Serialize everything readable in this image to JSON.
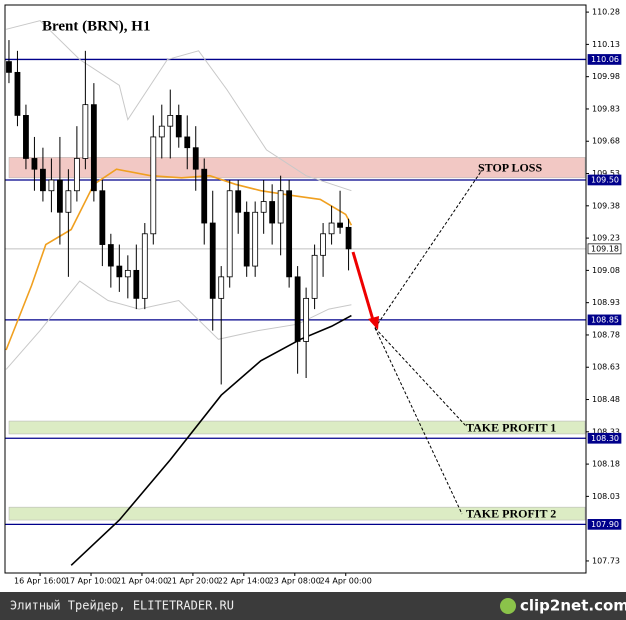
{
  "chart_data": {
    "type": "candlestick",
    "title": "Brent (BRN), H1",
    "x": [
      5,
      8,
      11,
      14,
      17,
      20,
      23,
      26,
      29,
      32,
      35,
      38,
      41,
      44,
      47,
      50,
      53,
      56,
      59,
      62,
      65,
      68,
      71,
      74,
      77,
      80,
      83,
      86,
      89,
      92,
      95,
      98,
      101,
      104,
      107,
      110,
      113,
      116,
      119,
      122,
      125
    ],
    "open": [
      110.05,
      110.0,
      109.8,
      109.6,
      109.55,
      109.45,
      109.5,
      109.35,
      109.45,
      109.6,
      109.85,
      109.45,
      109.2,
      109.1,
      109.05,
      109.08,
      108.95,
      109.25,
      109.7,
      109.75,
      109.8,
      109.7,
      109.65,
      109.55,
      109.3,
      108.95,
      109.05,
      109.45,
      109.35,
      109.1,
      109.35,
      109.4,
      109.3,
      109.45,
      109.05,
      108.75,
      108.95,
      109.15,
      109.25,
      109.3,
      109.28
    ],
    "high": [
      110.15,
      110.1,
      109.85,
      109.7,
      109.65,
      109.6,
      109.7,
      109.55,
      109.75,
      110.1,
      109.95,
      109.5,
      109.25,
      109.2,
      109.15,
      109.2,
      109.3,
      109.8,
      109.85,
      109.92,
      109.85,
      109.8,
      109.75,
      109.6,
      109.45,
      109.1,
      109.5,
      109.5,
      109.4,
      109.4,
      109.5,
      109.48,
      109.52,
      109.5,
      109.1,
      109.0,
      109.2,
      109.3,
      109.38,
      109.45,
      109.32
    ],
    "low": [
      109.95,
      109.75,
      109.55,
      109.45,
      109.4,
      109.35,
      109.2,
      109.05,
      109.4,
      109.55,
      109.4,
      109.1,
      109.0,
      108.98,
      108.95,
      108.9,
      108.9,
      109.2,
      109.6,
      109.6,
      109.65,
      109.55,
      109.45,
      109.2,
      108.8,
      108.55,
      109.0,
      109.25,
      109.05,
      109.05,
      109.25,
      109.2,
      109.15,
      109.0,
      108.6,
      108.58,
      108.9,
      109.05,
      109.2,
      109.25,
      109.08
    ],
    "close": [
      110.0,
      109.8,
      109.6,
      109.55,
      109.45,
      109.5,
      109.35,
      109.45,
      109.6,
      109.85,
      109.45,
      109.2,
      109.1,
      109.05,
      109.08,
      108.95,
      109.25,
      109.7,
      109.75,
      109.8,
      109.7,
      109.65,
      109.55,
      109.3,
      108.95,
      109.05,
      109.45,
      109.35,
      109.1,
      109.35,
      109.4,
      109.3,
      109.45,
      109.05,
      108.75,
      108.95,
      109.15,
      109.25,
      109.3,
      109.28,
      109.18
    ],
    "lines": [
      {
        "color": "#c8c8c8",
        "x": [
          4,
          16,
          30,
          44,
          47,
          61,
          72,
          82,
          96,
          110,
          126
        ],
        "values": [
          110.2,
          110.24,
          110.06,
          109.94,
          109.78,
          110.06,
          110.1,
          109.92,
          109.64,
          109.52,
          109.45
        ]
      },
      {
        "color": "#c8c8c8",
        "x": [
          4,
          16,
          30,
          40,
          51,
          65,
          79,
          93,
          107,
          118,
          126
        ],
        "values": [
          108.62,
          108.8,
          109.03,
          108.94,
          108.9,
          108.94,
          108.76,
          108.8,
          108.83,
          108.9,
          108.92
        ]
      },
      {
        "color": "#f0a020",
        "x": [
          4,
          13,
          18,
          27,
          35,
          43,
          55,
          66,
          76,
          85,
          94,
          104,
          115,
          124,
          126
        ],
        "values": [
          108.71,
          109.01,
          109.2,
          109.27,
          109.48,
          109.55,
          109.52,
          109.51,
          109.52,
          109.48,
          109.45,
          109.43,
          109.41,
          109.34,
          109.29
        ]
      },
      {
        "color": "#000000",
        "x": [
          27,
          44,
          62,
          80,
          94,
          108,
          119,
          126
        ],
        "values": [
          107.71,
          107.92,
          108.2,
          108.5,
          108.66,
          108.76,
          108.82,
          108.87
        ]
      }
    ],
    "levels": [
      {
        "value": 110.06,
        "color": "#00008b"
      },
      {
        "value": 109.5,
        "label": "109.50",
        "color": "#00008b"
      },
      {
        "value": 109.18,
        "color": "#c0c0c0"
      },
      {
        "value": 108.85,
        "color": "#00008b"
      },
      {
        "value": 108.3,
        "label": "108.30",
        "color": "#00008b"
      },
      {
        "value": 107.9,
        "label": "107.90",
        "color": "#00008b"
      }
    ],
    "zones": [
      {
        "name": "STOP LOSS",
        "range": [
          109.51,
          109.605
        ],
        "color": "#f2c8c4"
      },
      {
        "name": "TAKE PROFIT 1",
        "range": [
          108.32,
          108.38
        ],
        "color": "#dcecc4"
      },
      {
        "name": "TAKE PROFIT 2",
        "range": [
          107.92,
          107.98
        ],
        "color": "#dcecc4"
      }
    ],
    "ylim": [
      107.674,
      110.313
    ],
    "yticks": [
      110.28,
      110.13,
      109.98,
      109.83,
      109.68,
      109.53,
      109.38,
      109.23,
      109.08,
      108.93,
      108.78,
      108.63,
      108.48,
      108.33,
      108.18,
      108.03,
      107.73
    ],
    "xlim": [
      3.6,
      208.9
    ],
    "xticks": [
      {
        "value": 16,
        "label": "16 Apr 16:00"
      },
      {
        "value": 34,
        "label": "17 Apr 10:00"
      },
      {
        "value": 52,
        "label": "21 Apr 04:00"
      },
      {
        "value": 70,
        "label": "21 Apr 20:00"
      },
      {
        "value": 88,
        "label": "22 Apr 14:00"
      },
      {
        "value": 106,
        "label": "23 Apr 08:00"
      },
      {
        "value": 124,
        "label": "24 Apr 00:00"
      }
    ]
  },
  "footer": {
    "source": "Элитный Трейдер, ELITETRADER.RU",
    "logo": "clip2net.com"
  }
}
